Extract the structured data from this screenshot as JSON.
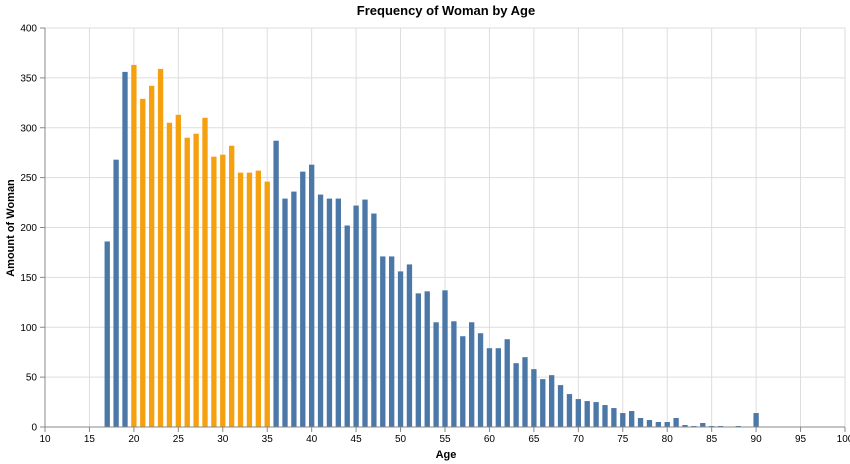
{
  "chart_data": {
    "type": "bar",
    "title": "Frequency of Woman by Age",
    "xlabel": "Age",
    "ylabel": "Amount of Woman",
    "xlim": [
      10,
      100
    ],
    "ylim": [
      0,
      400
    ],
    "x_ticks": [
      10,
      15,
      20,
      25,
      30,
      35,
      40,
      45,
      50,
      55,
      60,
      65,
      70,
      75,
      80,
      85,
      90,
      95,
      100
    ],
    "y_ticks": [
      0,
      50,
      100,
      150,
      200,
      250,
      300,
      350,
      400
    ],
    "grid": true,
    "colors": {
      "default": "#4c78a8",
      "highlight": "#f5a00f"
    },
    "highlight_range": [
      20,
      35
    ],
    "x": [
      17,
      18,
      19,
      20,
      21,
      22,
      23,
      24,
      25,
      26,
      27,
      28,
      29,
      30,
      31,
      32,
      33,
      34,
      35,
      36,
      37,
      38,
      39,
      40,
      41,
      42,
      43,
      44,
      45,
      46,
      47,
      48,
      49,
      50,
      51,
      52,
      53,
      54,
      55,
      56,
      57,
      58,
      59,
      60,
      61,
      62,
      63,
      64,
      65,
      66,
      67,
      68,
      69,
      70,
      71,
      72,
      73,
      74,
      75,
      76,
      77,
      78,
      79,
      80,
      81,
      82,
      83,
      84,
      85,
      86,
      87,
      88,
      90
    ],
    "values": [
      186,
      268,
      356,
      363,
      329,
      342,
      359,
      305,
      313,
      290,
      294,
      310,
      271,
      273,
      282,
      255,
      255,
      257,
      246,
      287,
      229,
      236,
      256,
      263,
      233,
      229,
      229,
      202,
      222,
      228,
      214,
      171,
      171,
      156,
      163,
      134,
      136,
      105,
      137,
      106,
      91,
      105,
      94,
      79,
      79,
      88,
      64,
      70,
      58,
      48,
      52,
      42,
      33,
      28,
      26,
      25,
      22,
      19,
      14,
      16,
      9,
      7,
      5,
      5,
      9,
      2,
      1,
      4,
      1,
      1,
      0,
      1,
      14
    ]
  }
}
